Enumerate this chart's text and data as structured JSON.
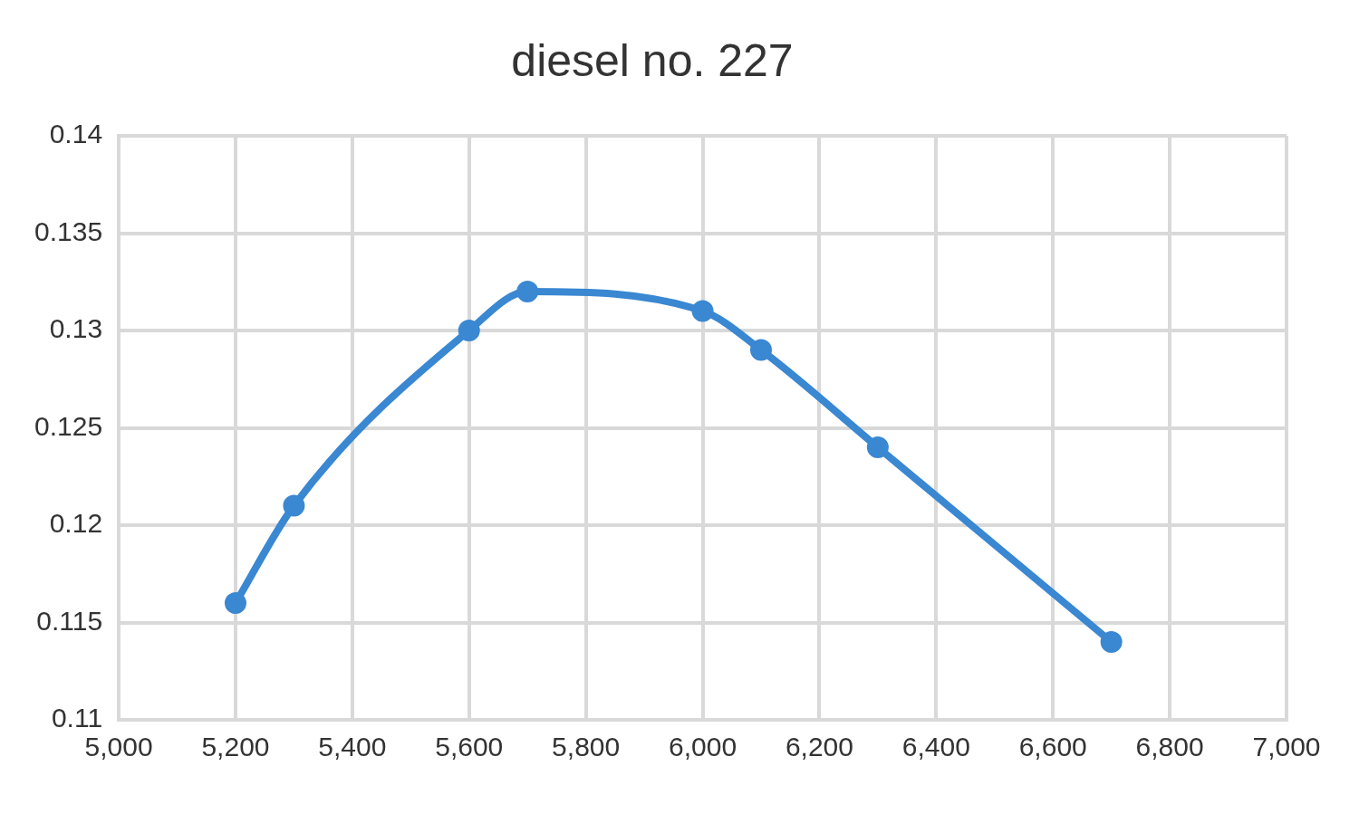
{
  "chart_data": {
    "type": "line",
    "title": "diesel no. 227",
    "x": [
      5200,
      5300,
      5600,
      5700,
      6000,
      6100,
      6300,
      6700
    ],
    "series": [
      {
        "color": "#3a87d2",
        "values": [
          0.116,
          0.121,
          0.13,
          0.132,
          0.131,
          0.129,
          0.124,
          0.114
        ]
      }
    ],
    "xlim": [
      5000,
      7000
    ],
    "xticks": [
      {
        "value": 5000,
        "label": "5,000"
      },
      {
        "value": 5200,
        "label": "5,200"
      },
      {
        "value": 5400,
        "label": "5,400"
      },
      {
        "value": 5600,
        "label": "5,600"
      },
      {
        "value": 5800,
        "label": "5,800"
      },
      {
        "value": 6000,
        "label": "6,000"
      },
      {
        "value": 6200,
        "label": "6,200"
      },
      {
        "value": 6400,
        "label": "6,400"
      },
      {
        "value": 6600,
        "label": "6,600"
      },
      {
        "value": 6800,
        "label": "6,800"
      },
      {
        "value": 7000,
        "label": "7,000"
      }
    ],
    "ylim": [
      0.11,
      0.14
    ],
    "yticks": [
      0.11,
      0.115,
      0.12,
      0.125,
      0.13,
      0.135,
      0.14
    ],
    "grid": true,
    "legend": false,
    "marker": "circle",
    "line_style": "solid"
  }
}
